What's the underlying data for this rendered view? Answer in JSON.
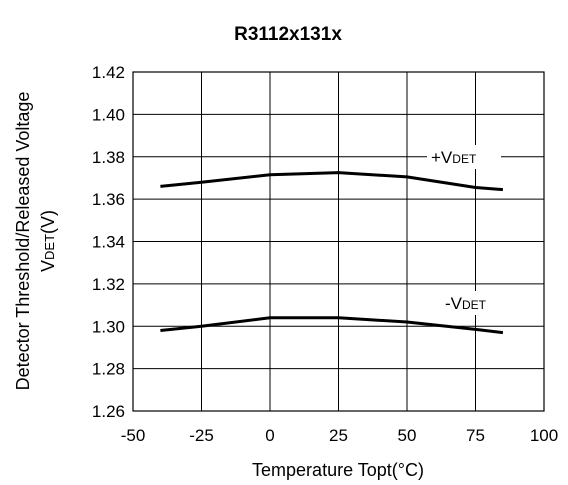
{
  "chart_data": {
    "type": "line",
    "title": "R3112x131x",
    "xlabel": "Temperature Topt(°C)",
    "ylabel": {
      "line1": "Detector Threshold/Released Voltage",
      "line2_main": "V",
      "line2_sub": "DET",
      "line2_unit": "(V)"
    },
    "xlim": [
      -50,
      100
    ],
    "ylim": [
      1.26,
      1.42
    ],
    "x_ticks": [
      "-50",
      "-25",
      "0",
      "25",
      "50",
      "75",
      "100"
    ],
    "y_ticks": [
      "1.42",
      "1.40",
      "1.38",
      "1.36",
      "1.34",
      "1.32",
      "1.30",
      "1.28",
      "1.26"
    ],
    "grid": true,
    "series": [
      {
        "name_prefix": "+V",
        "name_sub": "DET",
        "x": [
          -40,
          -25,
          0,
          25,
          50,
          75,
          85
        ],
        "y": [
          1.366,
          1.368,
          1.3715,
          1.3725,
          1.3705,
          1.3655,
          1.3645
        ]
      },
      {
        "name_prefix": "-V",
        "name_sub": "DET",
        "x": [
          -40,
          -25,
          0,
          25,
          50,
          75,
          85
        ],
        "y": [
          1.298,
          1.3,
          1.304,
          1.304,
          1.302,
          1.2985,
          1.297
        ]
      }
    ]
  }
}
